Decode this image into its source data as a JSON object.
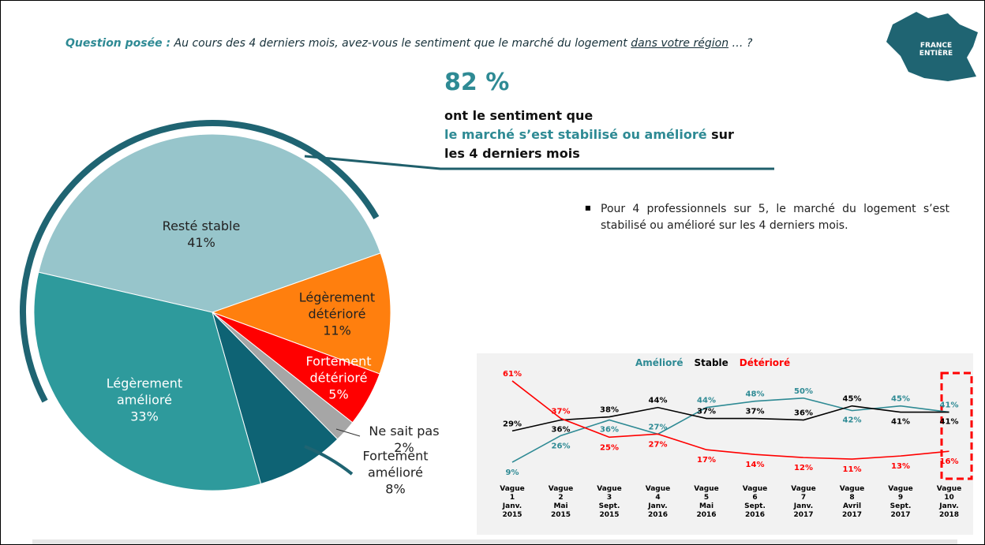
{
  "header": {
    "question_label": "Question posée :",
    "question_text": "Au cours des 4 derniers mois, avez-vous le sentiment que le marché du logement",
    "question_underlined": "dans votre région",
    "question_end": "… ?",
    "map_label": "FRANCE ENTIÈRE"
  },
  "highlight": {
    "figure": "82 %",
    "line1": "ont le sentiment que",
    "line2_colored": "le marché s’est stabilisé ou amélioré",
    "line2_end": "sur",
    "line3": "les 4 derniers mois"
  },
  "bullet": "Pour 4 professionnels sur 5, le marché du logement s’est stabilisé ou amélioré sur les 4 derniers mois.",
  "chart_data": [
    {
      "type": "pie",
      "categories": [
        "Resté stable",
        "Légèrement détérioré",
        "Fortement détérioré",
        "Ne sait pas",
        "Fortement amélioré",
        "Légèrement amélioré"
      ],
      "values": [
        41,
        11,
        5,
        2,
        8,
        33
      ],
      "value_labels": [
        "41%",
        "11%",
        "5%",
        "2%",
        "8%",
        "33%"
      ],
      "colors": [
        "#97c5cb",
        "#ff7f0e",
        "#ff0000",
        "#a6a6a6",
        "#0e6374",
        "#2e9a9c"
      ]
    },
    {
      "type": "line",
      "categories": [
        "Vague\n1\nJanv.\n2015",
        "Vague\n2\nMai\n2015",
        "Vague\n3\nSept.\n2015",
        "Vague\n4\nJanv.\n2016",
        "Vague\n5\nMai\n2016",
        "Vague\n6\nSept.\n2016",
        "Vague\n7\nJanv.\n2017",
        "Vague\n8\nAvril\n2017",
        "Vague\n9\nSept.\n2017",
        "Vague\n10\nJanv.\n2018"
      ],
      "ylim": [
        5,
        65
      ],
      "series": [
        {
          "name": "Amélioré",
          "color": "#2e8a94",
          "values": [
            9,
            26,
            36,
            27,
            44,
            48,
            50,
            42,
            45,
            41
          ],
          "value_labels": [
            "9%",
            "26%",
            "36%",
            "27%",
            "44%",
            "48%",
            "50%",
            "42%",
            "45%",
            "41%"
          ]
        },
        {
          "name": "Stable",
          "color": "#000000",
          "values": [
            29,
            36,
            38,
            44,
            37,
            37,
            36,
            45,
            41,
            41
          ],
          "value_labels": [
            "29%",
            "36%",
            "38%",
            "44%",
            "37%",
            "37%",
            "36%",
            "45%",
            "41%",
            "41%"
          ]
        },
        {
          "name": "Détérioré",
          "color": "#ff0000",
          "values": [
            61,
            37,
            25,
            27,
            17,
            14,
            12,
            11,
            13,
            16
          ],
          "value_labels": [
            "61%",
            "37%",
            "25%",
            "27%",
            "17%",
            "14%",
            "12%",
            "11%",
            "13%",
            "16%"
          ]
        }
      ]
    }
  ]
}
